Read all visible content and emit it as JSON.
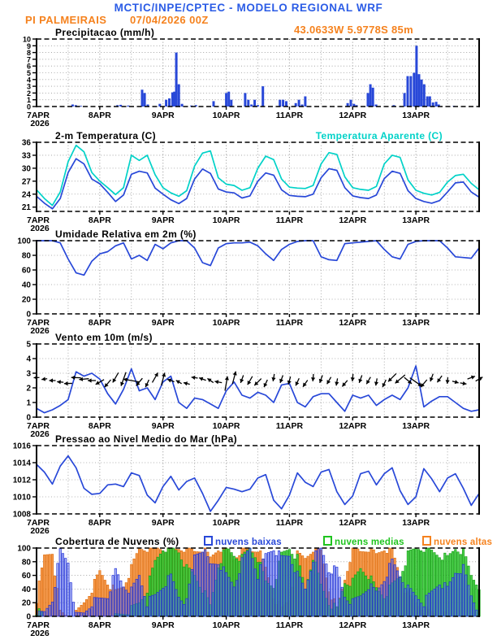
{
  "header": {
    "title": "MCTIC/INPE/CPTEC - MODELO REGIONAL WRF",
    "station": "PI PALMEIRAIS",
    "run_datetime": "07/04/2026 00Z",
    "location": "43.0633W 5.9778S 85m"
  },
  "colors": {
    "header_blue": "#2B5CE6",
    "orange": "#F5821E",
    "line_blue": "#2848D8",
    "cyan": "#00D2C8",
    "green": "#1FC41F",
    "grid": "#999999",
    "cloud_low_fill": "rgba(90,110,235,0.50)",
    "cloud_low_stroke": "#2030D8",
    "cloud_mid_fill": "rgba(60,205,60,0.90)",
    "cloud_mid_stroke": "#15A015",
    "cloud_high_fill": "rgba(246,150,70,0.95)",
    "cloud_high_stroke": "#E07010"
  },
  "x_axis": {
    "domain": [
      7,
      14
    ],
    "step_days": 0.125,
    "start_label": "7APR",
    "start_year": "2026",
    "day_tick_labels": [
      "8APR",
      "9APR",
      "10APR",
      "11APR",
      "12APR",
      "13APR"
    ]
  },
  "chart_data": [
    {
      "id": "precip",
      "type": "bar",
      "title": "Precipitacao (mm/h)",
      "ylim": [
        0,
        10
      ],
      "yticks": [
        0,
        1,
        2,
        3,
        4,
        5,
        6,
        7,
        8,
        9,
        10
      ],
      "bars": [
        [
          7.57,
          0.3
        ],
        [
          7.62,
          0.2
        ],
        [
          7.7,
          0.1
        ],
        [
          8.28,
          0.2
        ],
        [
          8.33,
          0.25
        ],
        [
          8.45,
          0.15
        ],
        [
          8.67,
          2.5
        ],
        [
          8.71,
          2.0
        ],
        [
          8.76,
          0.3
        ],
        [
          8.95,
          0.4
        ],
        [
          9.05,
          1.0
        ],
        [
          9.1,
          1.2
        ],
        [
          9.15,
          2.1
        ],
        [
          9.18,
          2.2
        ],
        [
          9.21,
          8.0
        ],
        [
          9.25,
          3.3
        ],
        [
          9.3,
          0.4
        ],
        [
          9.45,
          0.15
        ],
        [
          9.52,
          0.2
        ],
        [
          9.8,
          0.8
        ],
        [
          10.0,
          2.0
        ],
        [
          10.04,
          2.2
        ],
        [
          10.08,
          1.0
        ],
        [
          10.3,
          2.0
        ],
        [
          10.35,
          1.0
        ],
        [
          10.4,
          0.3
        ],
        [
          10.45,
          1.0
        ],
        [
          10.5,
          0.2
        ],
        [
          10.58,
          3.0
        ],
        [
          10.85,
          1.0
        ],
        [
          10.9,
          1.0
        ],
        [
          10.95,
          0.8
        ],
        [
          11.1,
          0.5
        ],
        [
          11.15,
          1.0
        ],
        [
          11.2,
          0.3
        ],
        [
          11.25,
          1.5
        ],
        [
          11.92,
          0.5
        ],
        [
          11.97,
          1.0
        ],
        [
          12.02,
          0.4
        ],
        [
          12.06,
          0.2
        ],
        [
          12.24,
          2.0
        ],
        [
          12.28,
          3.3
        ],
        [
          12.32,
          2.8
        ],
        [
          12.37,
          0.3
        ],
        [
          12.65,
          0.2
        ],
        [
          12.82,
          2.0
        ],
        [
          12.87,
          4.5
        ],
        [
          12.92,
          4.5
        ],
        [
          12.97,
          5.0
        ],
        [
          13.01,
          9.0
        ],
        [
          13.05,
          4.8
        ],
        [
          13.09,
          4.0
        ],
        [
          13.13,
          3.3
        ],
        [
          13.18,
          1.5
        ],
        [
          13.22,
          1.5
        ],
        [
          13.27,
          0.6
        ],
        [
          13.32,
          0.7
        ],
        [
          13.36,
          0.3
        ],
        [
          13.6,
          0.1
        ]
      ]
    },
    {
      "id": "temp",
      "type": "line",
      "title": "2-m Temperatura (C)",
      "title_right": "Temperatura Aparente (C)",
      "ylim": [
        20,
        36
      ],
      "yticks": [
        21,
        24,
        27,
        30,
        33,
        36
      ],
      "series": [
        {
          "name": "2-m Temperatura (C)",
          "color_key": "line_blue",
          "values": [
            23.5,
            21.9,
            20.6,
            23.0,
            29.0,
            32.2,
            31.0,
            27.5,
            26.4,
            24.4,
            22.3,
            23.8,
            28.6,
            29.3,
            28.9,
            25.4,
            24.0,
            22.7,
            21.8,
            23.0,
            27.5,
            29.8,
            28.8,
            25.2,
            24.5,
            24.3,
            23.1,
            23.6,
            27.0,
            28.9,
            28.4,
            25.0,
            23.7,
            23.5,
            23.4,
            24.0,
            27.8,
            29.9,
            29.5,
            25.5,
            23.6,
            23.2,
            23.0,
            23.8,
            27.6,
            29.3,
            28.8,
            24.8,
            23.0,
            22.3,
            21.9,
            22.5,
            24.5,
            26.6,
            26.8,
            24.5,
            23.3
          ]
        },
        {
          "name": "Temperatura Aparente (C)",
          "color_key": "cyan",
          "values": [
            25.0,
            23.0,
            21.4,
            24.5,
            31.5,
            35.3,
            33.8,
            29.0,
            27.0,
            25.5,
            23.9,
            25.5,
            33.0,
            31.8,
            33.0,
            28.5,
            25.5,
            24.3,
            23.5,
            24.8,
            30.5,
            33.5,
            34.0,
            27.8,
            26.3,
            26.0,
            24.9,
            25.5,
            30.0,
            32.8,
            32.0,
            27.5,
            25.6,
            25.4,
            25.3,
            26.0,
            31.0,
            33.6,
            33.2,
            28.0,
            25.5,
            25.1,
            24.9,
            25.8,
            31.0,
            33.0,
            32.5,
            27.3,
            24.9,
            24.2,
            23.8,
            24.4,
            26.8,
            28.3,
            28.6,
            26.5,
            25.0
          ]
        }
      ]
    },
    {
      "id": "rh",
      "type": "line",
      "title": "Umidade Relativa em 2m (%)",
      "ylim": [
        0,
        100
      ],
      "yticks": [
        0,
        20,
        40,
        60,
        80,
        100
      ],
      "series": [
        {
          "name": "Umidade Relativa em 2m (%)",
          "color_key": "line_blue",
          "values": [
            100,
            100,
            100,
            97,
            75,
            56,
            53,
            72,
            82,
            85,
            93,
            97,
            75,
            80,
            73,
            95,
            89,
            97,
            100,
            100,
            90,
            70,
            66,
            90,
            96,
            97,
            97,
            98,
            93,
            82,
            73,
            88,
            95,
            99,
            100,
            100,
            78,
            74,
            73,
            96,
            97,
            98,
            99,
            100,
            88,
            78,
            75,
            95,
            99,
            100,
            100,
            100,
            90,
            78,
            77,
            76,
            90
          ]
        }
      ]
    },
    {
      "id": "wind",
      "type": "line",
      "title": "Vento em 10m (m/s)",
      "ylim": [
        0,
        5
      ],
      "yticks": [
        0,
        1,
        2,
        3,
        4,
        5
      ],
      "series": [
        {
          "name": "Vento em 10m (m/s)",
          "color_key": "line_blue",
          "values": [
            0.6,
            0.3,
            0.5,
            0.8,
            1.2,
            3.1,
            2.8,
            3.0,
            2.6,
            1.6,
            0.9,
            1.9,
            3.3,
            1.8,
            2.0,
            1.2,
            2.4,
            2.8,
            1.0,
            0.6,
            1.3,
            1.2,
            0.9,
            0.6,
            1.8,
            2.4,
            1.5,
            1.3,
            1.7,
            1.5,
            1.0,
            2.2,
            2.3,
            1.0,
            0.7,
            1.4,
            1.6,
            1.6,
            1.0,
            0.4,
            1.5,
            1.3,
            1.5,
            0.8,
            1.2,
            1.5,
            1.2,
            2.0,
            3.5,
            0.7,
            1.1,
            1.4,
            1.4,
            1.0,
            0.6,
            0.4,
            0.5
          ]
        }
      ],
      "arrows": {
        "anchor": 2.5,
        "angles": [
          178,
          172,
          180,
          185,
          178,
          182,
          175,
          180,
          150,
          130,
          120,
          110,
          190,
          130,
          115,
          300,
          285,
          200,
          210,
          195,
          188,
          200,
          215,
          190,
          280,
          285,
          110,
          120,
          135,
          115,
          100,
          110,
          105,
          115,
          125,
          95,
          110,
          120,
          100,
          130,
          95,
          110,
          120,
          100,
          115,
          135,
          140,
          40,
          35,
          130,
          110,
          125,
          95,
          15,
          10,
          340,
          330
        ],
        "lengths": [
          7,
          7,
          8,
          8,
          10,
          12,
          12,
          10,
          12,
          12,
          14,
          18,
          20,
          12,
          10,
          14,
          16,
          9,
          8,
          8,
          8,
          9,
          9,
          9,
          18,
          16,
          10,
          12,
          12,
          10,
          9,
          10,
          10,
          10,
          10,
          9,
          10,
          10,
          9,
          10,
          9,
          10,
          10,
          9,
          10,
          14,
          16,
          12,
          18,
          12,
          10,
          10,
          8,
          8,
          8,
          10,
          10
        ]
      }
    },
    {
      "id": "pres",
      "type": "line",
      "title": "Pressao ao Nivel Medio do Mar (hPa)",
      "ylim": [
        1008,
        1016
      ],
      "yticks": [
        1008,
        1010,
        1012,
        1014,
        1016
      ],
      "series": [
        {
          "name": "Pressao ao Nivel Medio do Mar (hPa)",
          "color_key": "line_blue",
          "values": [
            1013.8,
            1012.9,
            1011.5,
            1013.6,
            1014.8,
            1013.4,
            1011.0,
            1010.3,
            1010.4,
            1011.4,
            1011.5,
            1011.2,
            1012.8,
            1012.5,
            1010.2,
            1009.3,
            1011.2,
            1012.4,
            1010.8,
            1011.8,
            1012.2,
            1010.4,
            1008.3,
            1009.6,
            1011.1,
            1010.9,
            1010.6,
            1010.9,
            1012.2,
            1012.6,
            1009.6,
            1008.6,
            1010.2,
            1012.8,
            1011.7,
            1011.2,
            1012.9,
            1013.2,
            1010.6,
            1009.1,
            1010.1,
            1012.7,
            1013.0,
            1011.4,
            1012.7,
            1013.4,
            1010.7,
            1009.1,
            1010.0,
            1013.3,
            1012.1,
            1010.6,
            1012.2,
            1012.7,
            1011.0,
            1009.0,
            1010.4
          ]
        }
      ]
    },
    {
      "id": "clouds",
      "type": "bar",
      "title": "Cobertura de Nuvens (%)",
      "ylim": [
        0,
        100
      ],
      "yticks": [
        0,
        20,
        40,
        60,
        80,
        100
      ],
      "legend": [
        {
          "label": "nuvens baixas",
          "color_key": "line_blue"
        },
        {
          "label": "nuvens medias",
          "color_key": "green"
        },
        {
          "label": "nuvens altas",
          "color_key": "orange"
        }
      ],
      "series": [
        {
          "name": "nuvens baixas",
          "values": [
            0,
            5,
            25,
            95,
            80,
            0,
            5,
            20,
            25,
            30,
            66,
            45,
            37,
            60,
            20,
            30,
            45,
            58,
            30,
            20,
            90,
            100,
            75,
            80,
            60,
            45,
            80,
            100,
            60,
            90,
            100,
            85,
            90,
            60,
            40,
            85,
            100,
            68,
            68,
            30,
            20,
            30,
            45,
            35,
            55,
            80,
            60,
            40,
            30,
            20,
            35,
            50,
            40,
            65,
            70,
            30,
            5
          ]
        },
        {
          "name": "nuvens medias",
          "values": [
            8,
            0,
            0,
            0,
            0,
            0,
            0,
            0,
            0,
            0,
            0,
            5,
            10,
            20,
            40,
            80,
            100,
            100,
            95,
            70,
            60,
            40,
            15,
            75,
            100,
            90,
            85,
            100,
            85,
            50,
            45,
            90,
            100,
            85,
            40,
            88,
            45,
            20,
            10,
            50,
            50,
            70,
            60,
            40,
            30,
            45,
            60,
            90,
            100,
            100,
            95,
            90,
            85,
            100,
            95,
            60,
            45
          ]
        },
        {
          "name": "nuvens altas",
          "values": [
            25,
            88,
            95,
            5,
            0,
            3,
            20,
            40,
            65,
            50,
            35,
            45,
            70,
            100,
            100,
            100,
            100,
            95,
            100,
            100,
            95,
            100,
            85,
            100,
            100,
            85,
            100,
            95,
            100,
            70,
            30,
            10,
            25,
            90,
            85,
            100,
            95,
            40,
            10,
            55,
            100,
            95,
            100,
            90,
            100,
            95,
            60,
            30,
            20,
            10,
            5,
            2,
            0,
            0,
            0,
            0,
            0
          ]
        }
      ]
    }
  ]
}
